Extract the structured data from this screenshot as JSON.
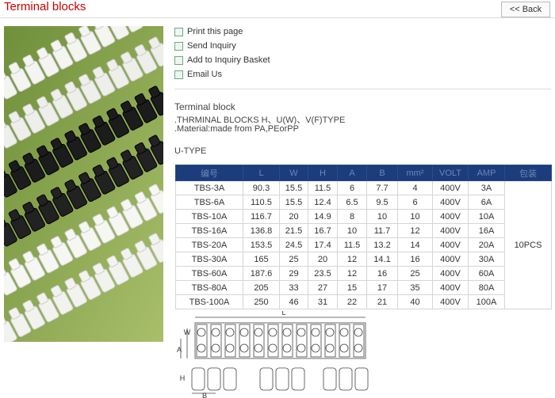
{
  "header": {
    "title": "Terminal blocks",
    "back": "<< Back"
  },
  "links": [
    "Print this page",
    "Send Inquiry",
    "Add to Inquiry Basket",
    "Email Us"
  ],
  "description": {
    "name": "Terminal block",
    "lines": [
      ".THRMINAL BLOCKS H、U(W)、V(F)TYPE",
      ".Material:made from PA,PEorPP"
    ],
    "section": "U-TYPE"
  },
  "table": {
    "columns": [
      "编号",
      "L",
      "W",
      "H",
      "A",
      "B",
      "mm²",
      "VOLT",
      "AMP",
      "包装"
    ],
    "rows": [
      [
        "TBS-3A",
        "90.3",
        "15.5",
        "11.5",
        "6",
        "7.7",
        "4",
        "400V",
        "3A"
      ],
      [
        "TBS-6A",
        "110.5",
        "15.5",
        "12.4",
        "6.5",
        "9.5",
        "6",
        "400V",
        "6A"
      ],
      [
        "TBS-10A",
        "116.7",
        "20",
        "14.9",
        "8",
        "10",
        "10",
        "400V",
        "10A"
      ],
      [
        "TBS-16A",
        "136.8",
        "21.5",
        "16.7",
        "10",
        "11.7",
        "12",
        "400V",
        "16A"
      ],
      [
        "TBS-20A",
        "153.5",
        "24.5",
        "17.4",
        "11.5",
        "13.2",
        "14",
        "400V",
        "20A"
      ],
      [
        "TBS-30A",
        "165",
        "25",
        "20",
        "12",
        "14.1",
        "16",
        "400V",
        "30A"
      ],
      [
        "TBS-60A",
        "187.6",
        "29",
        "23.5",
        "12",
        "16",
        "25",
        "400V",
        "60A"
      ],
      [
        "TBS-80A",
        "205",
        "33",
        "27",
        "15",
        "17",
        "35",
        "400V",
        "80A"
      ],
      [
        "TBS-100A",
        "250",
        "46",
        "31",
        "22",
        "21",
        "40",
        "400V",
        "100A"
      ]
    ],
    "packing": "10PCS"
  },
  "drawing": {
    "labels": [
      "L",
      "W",
      "A",
      "H",
      "B"
    ]
  }
}
